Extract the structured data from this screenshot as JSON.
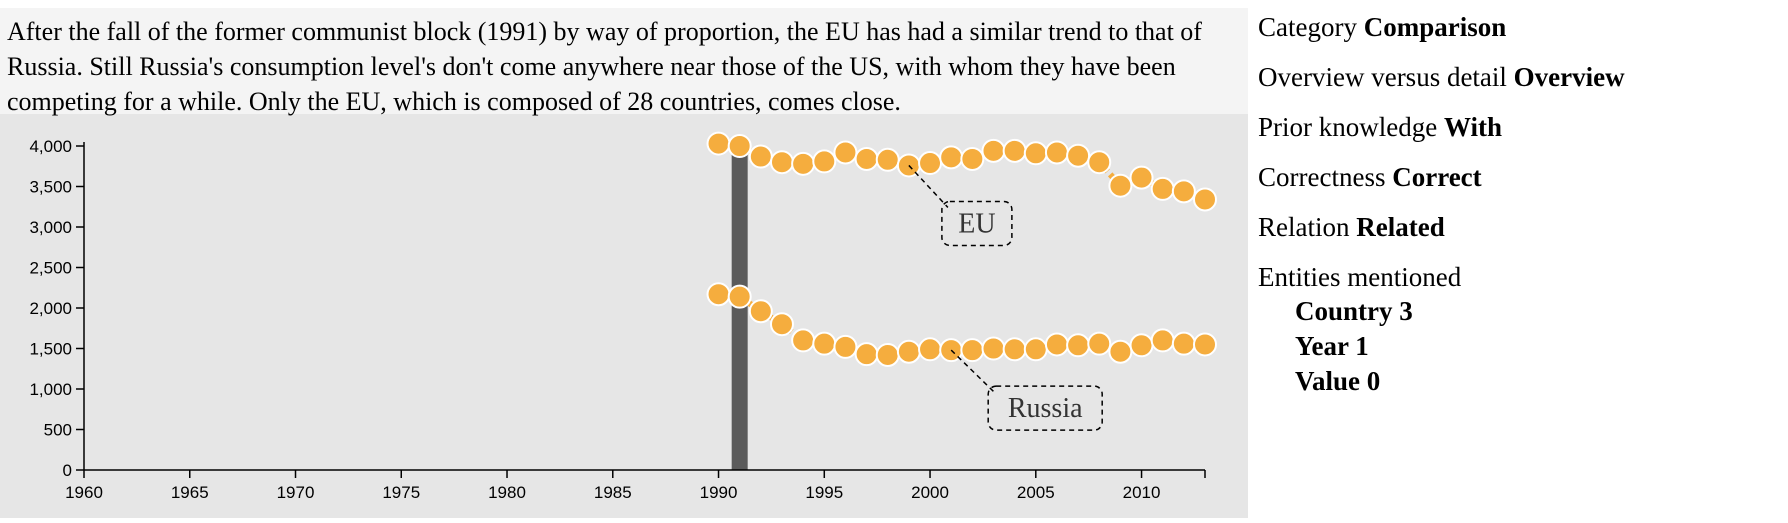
{
  "caption": "After the fall of the former communist block (1991) by way of proportion, the EU has had a similar trend to that of Russia. Still Russia's consumption level's don't come anywhere near those of the US, with whom they have been competing for a while. Only the EU, which is composed of 28 countries, comes close.",
  "side": {
    "category_label": "Category",
    "category_value": "Comparison",
    "overview_label": "Overview versus detail",
    "overview_value": "Overview",
    "prior_label": "Prior knowledge",
    "prior_value": "With",
    "correctness_label": "Correctness",
    "correctness_value": "Correct",
    "relation_label": "Relation",
    "relation_value": "Related",
    "entities_label": "Entities mentioned",
    "entities": [
      "Country 3",
      "Year 1",
      "Value 0"
    ]
  },
  "colors": {
    "panel": "#e6e6e6",
    "caption_bg": "#f4f4f4",
    "dot": "#f5ad3e",
    "highlight_bar": "#5b5b5b"
  },
  "chart_data": {
    "type": "line",
    "x_range": [
      1960,
      2013
    ],
    "y_range": [
      0,
      4000
    ],
    "x_ticks": [
      1960,
      1965,
      1970,
      1975,
      1980,
      1985,
      1990,
      1995,
      2000,
      2005,
      2010
    ],
    "y_ticks": [
      0,
      500,
      1000,
      1500,
      2000,
      2500,
      3000,
      3500,
      4000
    ],
    "highlight_year": 1991,
    "series": [
      {
        "name": "EU",
        "label_anchor_year": 1999,
        "x": [
          1990,
          1991,
          1992,
          1993,
          1994,
          1995,
          1996,
          1997,
          1998,
          1999,
          2000,
          2001,
          2002,
          2003,
          2004,
          2005,
          2006,
          2007,
          2008,
          2009,
          2010,
          2011,
          2012,
          2013
        ],
        "y": [
          4030,
          4000,
          3870,
          3800,
          3780,
          3810,
          3920,
          3840,
          3830,
          3760,
          3790,
          3860,
          3840,
          3940,
          3940,
          3910,
          3920,
          3880,
          3800,
          3510,
          3610,
          3470,
          3440,
          3340
        ]
      },
      {
        "name": "Russia",
        "label_anchor_year": 2001,
        "x": [
          1990,
          1991,
          1992,
          1993,
          1994,
          1995,
          1996,
          1997,
          1998,
          1999,
          2000,
          2001,
          2002,
          2003,
          2004,
          2005,
          2006,
          2007,
          2008,
          2009,
          2010,
          2011,
          2012,
          2013
        ],
        "y": [
          2170,
          2140,
          1960,
          1800,
          1600,
          1560,
          1520,
          1430,
          1420,
          1460,
          1490,
          1480,
          1480,
          1500,
          1490,
          1490,
          1550,
          1540,
          1560,
          1460,
          1540,
          1600,
          1560,
          1550
        ]
      }
    ]
  }
}
